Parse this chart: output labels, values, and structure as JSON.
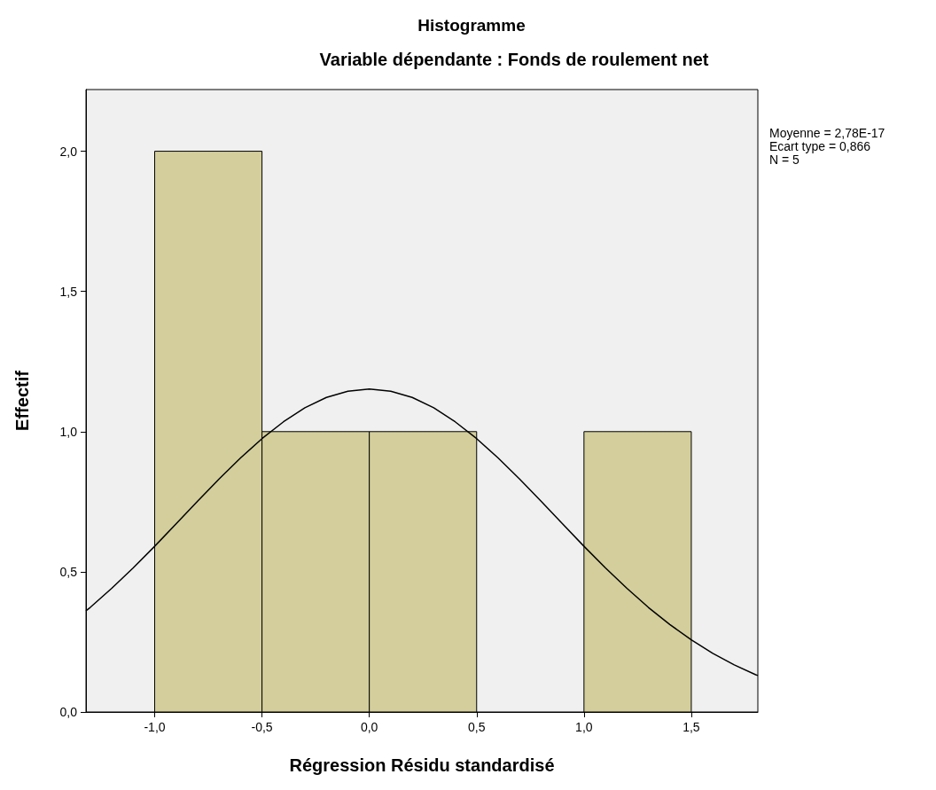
{
  "chart_data": {
    "type": "histogram",
    "title": "Histogramme",
    "subtitle": "Variable dépendante : Fonds de roulement net",
    "xlabel": "Régression Résidu standardisé",
    "ylabel": "Effectif",
    "annotations": [
      "Moyenne = 2,78E-17",
      "Ecart type = 0,866",
      "N = 5"
    ],
    "bins": [
      -1.0,
      -0.5,
      0.0,
      0.5,
      1.0,
      1.5
    ],
    "series": [
      {
        "type": "histogram",
        "color": "#d3ce9b",
        "values": [
          2,
          1,
          1,
          0,
          1
        ]
      },
      {
        "type": "line",
        "color": "#000000",
        "x": [
          -1.32,
          -1.3,
          -1.2,
          -1.1,
          -1.0,
          -0.9,
          -0.8,
          -0.7,
          -0.6,
          -0.5,
          -0.4,
          -0.3,
          -0.2,
          -0.1,
          0.0,
          0.1,
          0.2,
          0.3,
          0.4,
          0.5,
          0.6,
          0.7,
          0.8,
          0.9,
          1.0,
          1.1,
          1.2,
          1.3,
          1.4,
          1.5,
          1.6,
          1.7,
          1.8,
          1.81
        ],
        "values": [
          0.361,
          0.373,
          0.441,
          0.514,
          0.591,
          0.671,
          0.752,
          0.831,
          0.906,
          0.975,
          1.035,
          1.085,
          1.122,
          1.144,
          1.152,
          1.144,
          1.122,
          1.085,
          1.035,
          0.975,
          0.906,
          0.831,
          0.752,
          0.671,
          0.591,
          0.514,
          0.441,
          0.373,
          0.312,
          0.257,
          0.209,
          0.168,
          0.133,
          0.13
        ]
      }
    ],
    "marker": "none",
    "line_style": "solid",
    "grid": false,
    "xlim": [
      -1.32,
      1.81
    ],
    "xticks": [
      {
        "value": -1.0,
        "label": "-1,0"
      },
      {
        "value": -0.5,
        "label": "-0,5"
      },
      {
        "value": 0.0,
        "label": "0,0"
      },
      {
        "value": 0.5,
        "label": "0,5"
      },
      {
        "value": 1.0,
        "label": "1,0"
      },
      {
        "value": 1.5,
        "label": "1,5"
      }
    ],
    "ylim": [
      0,
      2.22
    ],
    "yticks": [
      {
        "value": 0,
        "label": "0,0"
      },
      {
        "value": 0.5,
        "label": "0,5"
      },
      {
        "value": 1.0,
        "label": "1,0"
      },
      {
        "value": 1.5,
        "label": "1,5"
      },
      {
        "value": 2.0,
        "label": "2,0"
      }
    ]
  }
}
